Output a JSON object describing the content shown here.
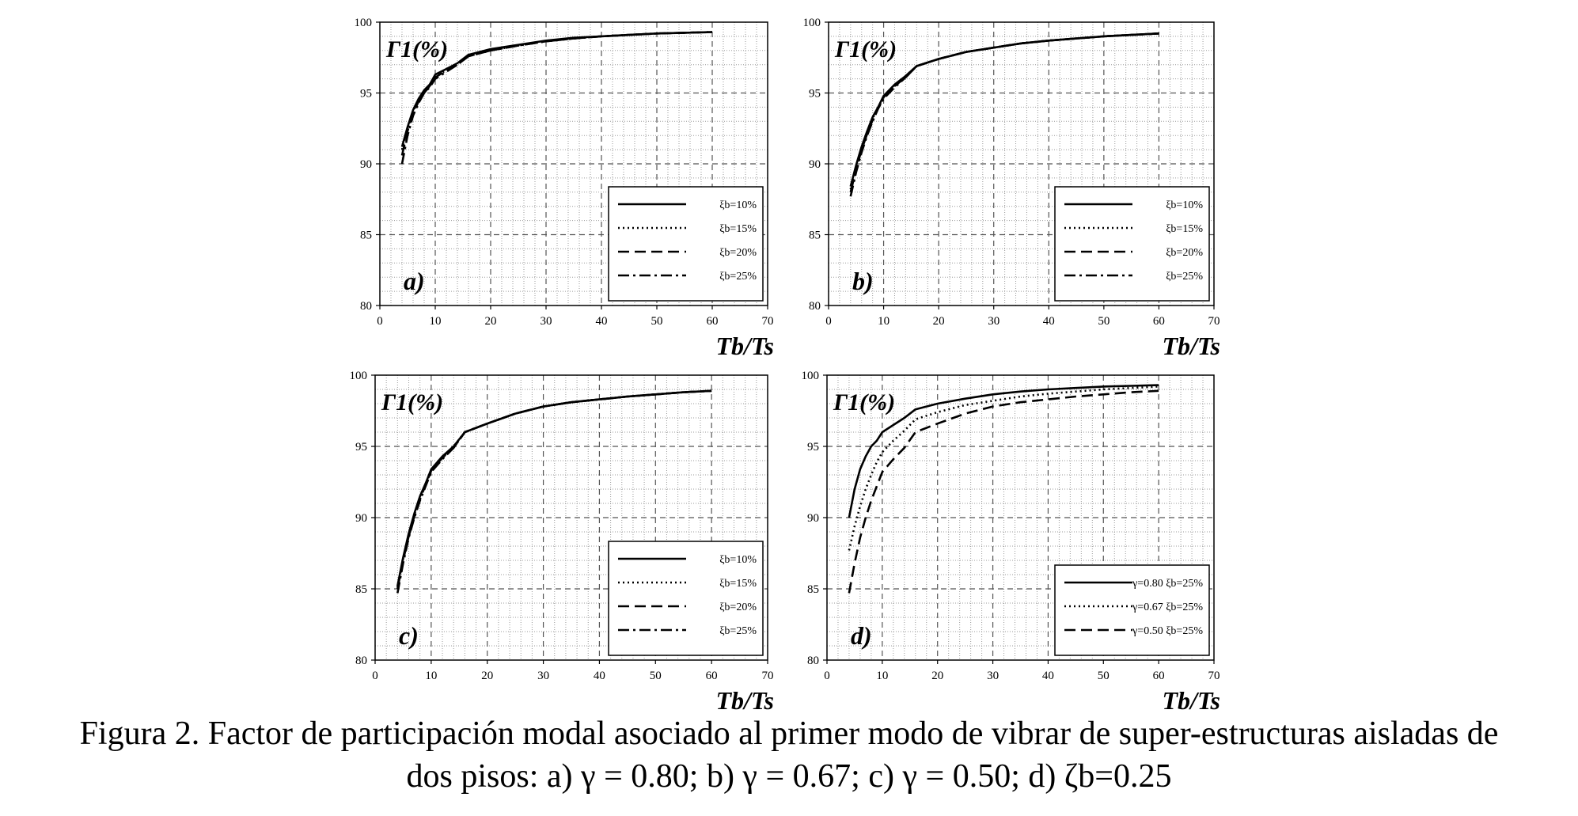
{
  "caption": {
    "line1": "Figura 2. Factor de participación modal asociado al primer modo de vibrar de super-estructuras aisladas de",
    "line2": "dos pisos: a) γ = 0.80; b) γ = 0.67; c) γ = 0.50; d) ζb=0.25"
  },
  "colors": {
    "line": "#000000",
    "grid_major": "#555555",
    "grid_minor": "#9a9a9a",
    "background": "#ffffff"
  },
  "chart_data": [
    {
      "panel": "a)",
      "type": "line",
      "ylabel": "Γ1(%)",
      "xlabel": "Tb/Ts",
      "xlim": [
        0,
        70
      ],
      "ylim": [
        80,
        100
      ],
      "xticks": [
        "0",
        "10",
        "20",
        "30",
        "40",
        "50",
        "60",
        "70"
      ],
      "yticks": [
        "80",
        "85",
        "90",
        "95",
        "100"
      ],
      "grid": true,
      "legend_position": "bottom-right",
      "series": [
        {
          "name": "ξb=10%",
          "style": "solid",
          "x": [
            4,
            5,
            6,
            7,
            8,
            9,
            10,
            12,
            14,
            16,
            20,
            25,
            30,
            35,
            40,
            45,
            50,
            55,
            60
          ],
          "y": [
            91.2,
            92.6,
            93.8,
            94.6,
            95.2,
            95.6,
            96.3,
            96.7,
            97.1,
            97.7,
            98.1,
            98.4,
            98.7,
            98.9,
            99.0,
            99.1,
            99.2,
            99.25,
            99.3
          ]
        },
        {
          "name": "ξb=15%",
          "style": "dotted",
          "x": [
            4,
            5,
            6,
            7,
            8,
            9,
            10,
            12,
            14,
            16,
            20,
            25,
            30,
            35,
            40,
            45,
            50,
            55,
            60
          ],
          "y": [
            91.0,
            92.5,
            93.7,
            94.5,
            95.1,
            95.5,
            96.2,
            96.6,
            97.0,
            97.6,
            98.0,
            98.35,
            98.65,
            98.85,
            99.0,
            99.1,
            99.2,
            99.25,
            99.3
          ]
        },
        {
          "name": "ξb=20%",
          "style": "dashed",
          "x": [
            4,
            5,
            6,
            7,
            8,
            9,
            10,
            12,
            14,
            16,
            20,
            25,
            30,
            35,
            40,
            45,
            50,
            55,
            60
          ],
          "y": [
            90.6,
            92.3,
            93.6,
            94.4,
            95.0,
            95.5,
            96.1,
            96.6,
            97.0,
            97.6,
            98.0,
            98.35,
            98.65,
            98.85,
            99.0,
            99.1,
            99.2,
            99.25,
            99.3
          ]
        },
        {
          "name": "ξb=25%",
          "style": "dashdot",
          "x": [
            4,
            5,
            6,
            7,
            8,
            9,
            10,
            12,
            14,
            16,
            20,
            25,
            30,
            35,
            40,
            45,
            50,
            55,
            60
          ],
          "y": [
            90.0,
            92.0,
            93.4,
            94.3,
            95.0,
            95.4,
            96.0,
            96.5,
            97.0,
            97.6,
            98.0,
            98.35,
            98.65,
            98.85,
            99.0,
            99.1,
            99.2,
            99.25,
            99.3
          ]
        }
      ]
    },
    {
      "panel": "b)",
      "type": "line",
      "ylabel": "Γ1(%)",
      "xlabel": "Tb/Ts",
      "xlim": [
        0,
        70
      ],
      "ylim": [
        80,
        100
      ],
      "xticks": [
        "0",
        "10",
        "20",
        "30",
        "40",
        "50",
        "60",
        "70"
      ],
      "yticks": [
        "80",
        "85",
        "90",
        "95",
        "100"
      ],
      "grid": true,
      "legend_position": "bottom-right",
      "series": [
        {
          "name": "ξb=10%",
          "style": "solid",
          "x": [
            4,
            5,
            6,
            7,
            8,
            9,
            10,
            12,
            14,
            16,
            20,
            25,
            30,
            35,
            40,
            45,
            50,
            55,
            60
          ],
          "y": [
            88.4,
            89.9,
            91.2,
            92.3,
            93.3,
            94.0,
            94.8,
            95.6,
            96.2,
            96.9,
            97.4,
            97.9,
            98.2,
            98.5,
            98.7,
            98.85,
            99.0,
            99.1,
            99.2
          ]
        },
        {
          "name": "ξb=15%",
          "style": "dotted",
          "x": [
            4,
            5,
            6,
            7,
            8,
            9,
            10,
            12,
            14,
            16,
            20,
            25,
            30,
            35,
            40,
            45,
            50,
            55,
            60
          ],
          "y": [
            88.2,
            89.8,
            91.1,
            92.2,
            93.2,
            94.0,
            94.7,
            95.5,
            96.2,
            96.9,
            97.4,
            97.9,
            98.2,
            98.5,
            98.7,
            98.85,
            99.0,
            99.1,
            99.2
          ]
        },
        {
          "name": "ξb=20%",
          "style": "dashed",
          "x": [
            4,
            5,
            6,
            7,
            8,
            9,
            10,
            12,
            14,
            16,
            20,
            25,
            30,
            35,
            40,
            45,
            50,
            55,
            60
          ],
          "y": [
            88.0,
            89.6,
            91.0,
            92.1,
            93.1,
            93.9,
            94.7,
            95.5,
            96.1,
            96.9,
            97.4,
            97.9,
            98.2,
            98.5,
            98.7,
            98.85,
            99.0,
            99.1,
            99.2
          ]
        },
        {
          "name": "ξb=25%",
          "style": "dashdot",
          "x": [
            4,
            5,
            6,
            7,
            8,
            9,
            10,
            12,
            14,
            16,
            20,
            25,
            30,
            35,
            40,
            45,
            50,
            55,
            60
          ],
          "y": [
            87.7,
            89.4,
            90.8,
            92.0,
            93.0,
            93.9,
            94.6,
            95.4,
            96.1,
            96.9,
            97.4,
            97.9,
            98.2,
            98.5,
            98.7,
            98.85,
            99.0,
            99.1,
            99.2
          ]
        }
      ]
    },
    {
      "panel": "c)",
      "type": "line",
      "ylabel": "Γ1(%)",
      "xlabel": "Tb/Ts",
      "xlim": [
        0,
        70
      ],
      "ylim": [
        80,
        100
      ],
      "xticks": [
        "0",
        "10",
        "20",
        "30",
        "40",
        "50",
        "60",
        "70"
      ],
      "yticks": [
        "80",
        "85",
        "90",
        "95",
        "100"
      ],
      "grid": true,
      "legend_position": "bottom-right",
      "series": [
        {
          "name": "ξb=10%",
          "style": "solid",
          "x": [
            4,
            5,
            6,
            7,
            8,
            9,
            10,
            12,
            14,
            16,
            20,
            25,
            30,
            35,
            40,
            45,
            50,
            55,
            60
          ],
          "y": [
            85.2,
            87.2,
            88.9,
            90.3,
            91.5,
            92.4,
            93.4,
            94.3,
            95.0,
            96.0,
            96.6,
            97.3,
            97.8,
            98.1,
            98.3,
            98.5,
            98.65,
            98.8,
            98.9
          ]
        },
        {
          "name": "ξb=15%",
          "style": "dotted",
          "x": [
            4,
            5,
            6,
            7,
            8,
            9,
            10,
            12,
            14,
            16,
            20,
            25,
            30,
            35,
            40,
            45,
            50,
            55,
            60
          ],
          "y": [
            85.1,
            87.1,
            88.8,
            90.2,
            91.4,
            92.3,
            93.3,
            94.2,
            95.0,
            96.0,
            96.6,
            97.3,
            97.8,
            98.1,
            98.3,
            98.5,
            98.65,
            98.8,
            98.9
          ]
        },
        {
          "name": "ξb=20%",
          "style": "dashed",
          "x": [
            4,
            5,
            6,
            7,
            8,
            9,
            10,
            12,
            14,
            16,
            20,
            25,
            30,
            35,
            40,
            45,
            50,
            55,
            60
          ],
          "y": [
            85.0,
            87.0,
            88.7,
            90.1,
            91.3,
            92.3,
            93.3,
            94.2,
            94.9,
            96.0,
            96.6,
            97.3,
            97.8,
            98.1,
            98.3,
            98.5,
            98.65,
            98.8,
            98.9
          ]
        },
        {
          "name": "ξb=25%",
          "style": "dashdot",
          "x": [
            4,
            5,
            6,
            7,
            8,
            9,
            10,
            12,
            14,
            16,
            20,
            25,
            30,
            35,
            40,
            45,
            50,
            55,
            60
          ],
          "y": [
            84.7,
            86.8,
            88.6,
            90.0,
            91.2,
            92.2,
            93.2,
            94.1,
            94.9,
            96.0,
            96.6,
            97.3,
            97.8,
            98.1,
            98.3,
            98.5,
            98.65,
            98.8,
            98.9
          ]
        }
      ]
    },
    {
      "panel": "d)",
      "type": "line",
      "ylabel": "Γ1(%)",
      "xlabel": "Tb/Ts",
      "xlim": [
        0,
        70
      ],
      "ylim": [
        80,
        100
      ],
      "xticks": [
        "0",
        "10",
        "20",
        "30",
        "40",
        "50",
        "60",
        "70"
      ],
      "yticks": [
        "80",
        "85",
        "90",
        "95",
        "100"
      ],
      "grid": true,
      "legend_position": "bottom-right",
      "series": [
        {
          "name": "γ=0.80 ξb=25%",
          "style": "solid",
          "x": [
            4,
            5,
            6,
            7,
            8,
            9,
            10,
            12,
            14,
            16,
            20,
            25,
            30,
            35,
            40,
            45,
            50,
            55,
            60
          ],
          "y": [
            90.0,
            92.0,
            93.4,
            94.3,
            95.0,
            95.4,
            96.0,
            96.5,
            97.0,
            97.6,
            98.0,
            98.35,
            98.65,
            98.85,
            99.0,
            99.1,
            99.2,
            99.25,
            99.3
          ]
        },
        {
          "name": "γ=0.67 ξb=25%",
          "style": "dotted",
          "x": [
            4,
            5,
            6,
            7,
            8,
            9,
            10,
            12,
            14,
            16,
            20,
            25,
            30,
            35,
            40,
            45,
            50,
            55,
            60
          ],
          "y": [
            87.7,
            89.4,
            90.8,
            92.0,
            93.0,
            93.9,
            94.6,
            95.4,
            96.1,
            96.9,
            97.4,
            97.9,
            98.2,
            98.5,
            98.7,
            98.85,
            99.0,
            99.1,
            99.2
          ]
        },
        {
          "name": "γ=0.50 ξb=25%",
          "style": "dashed",
          "x": [
            4,
            5,
            6,
            7,
            8,
            9,
            10,
            12,
            14,
            16,
            20,
            25,
            30,
            35,
            40,
            45,
            50,
            55,
            60
          ],
          "y": [
            84.7,
            86.8,
            88.6,
            90.0,
            91.2,
            92.2,
            93.2,
            94.1,
            94.9,
            96.0,
            96.6,
            97.3,
            97.8,
            98.1,
            98.3,
            98.5,
            98.65,
            98.8,
            98.9
          ]
        }
      ]
    }
  ]
}
